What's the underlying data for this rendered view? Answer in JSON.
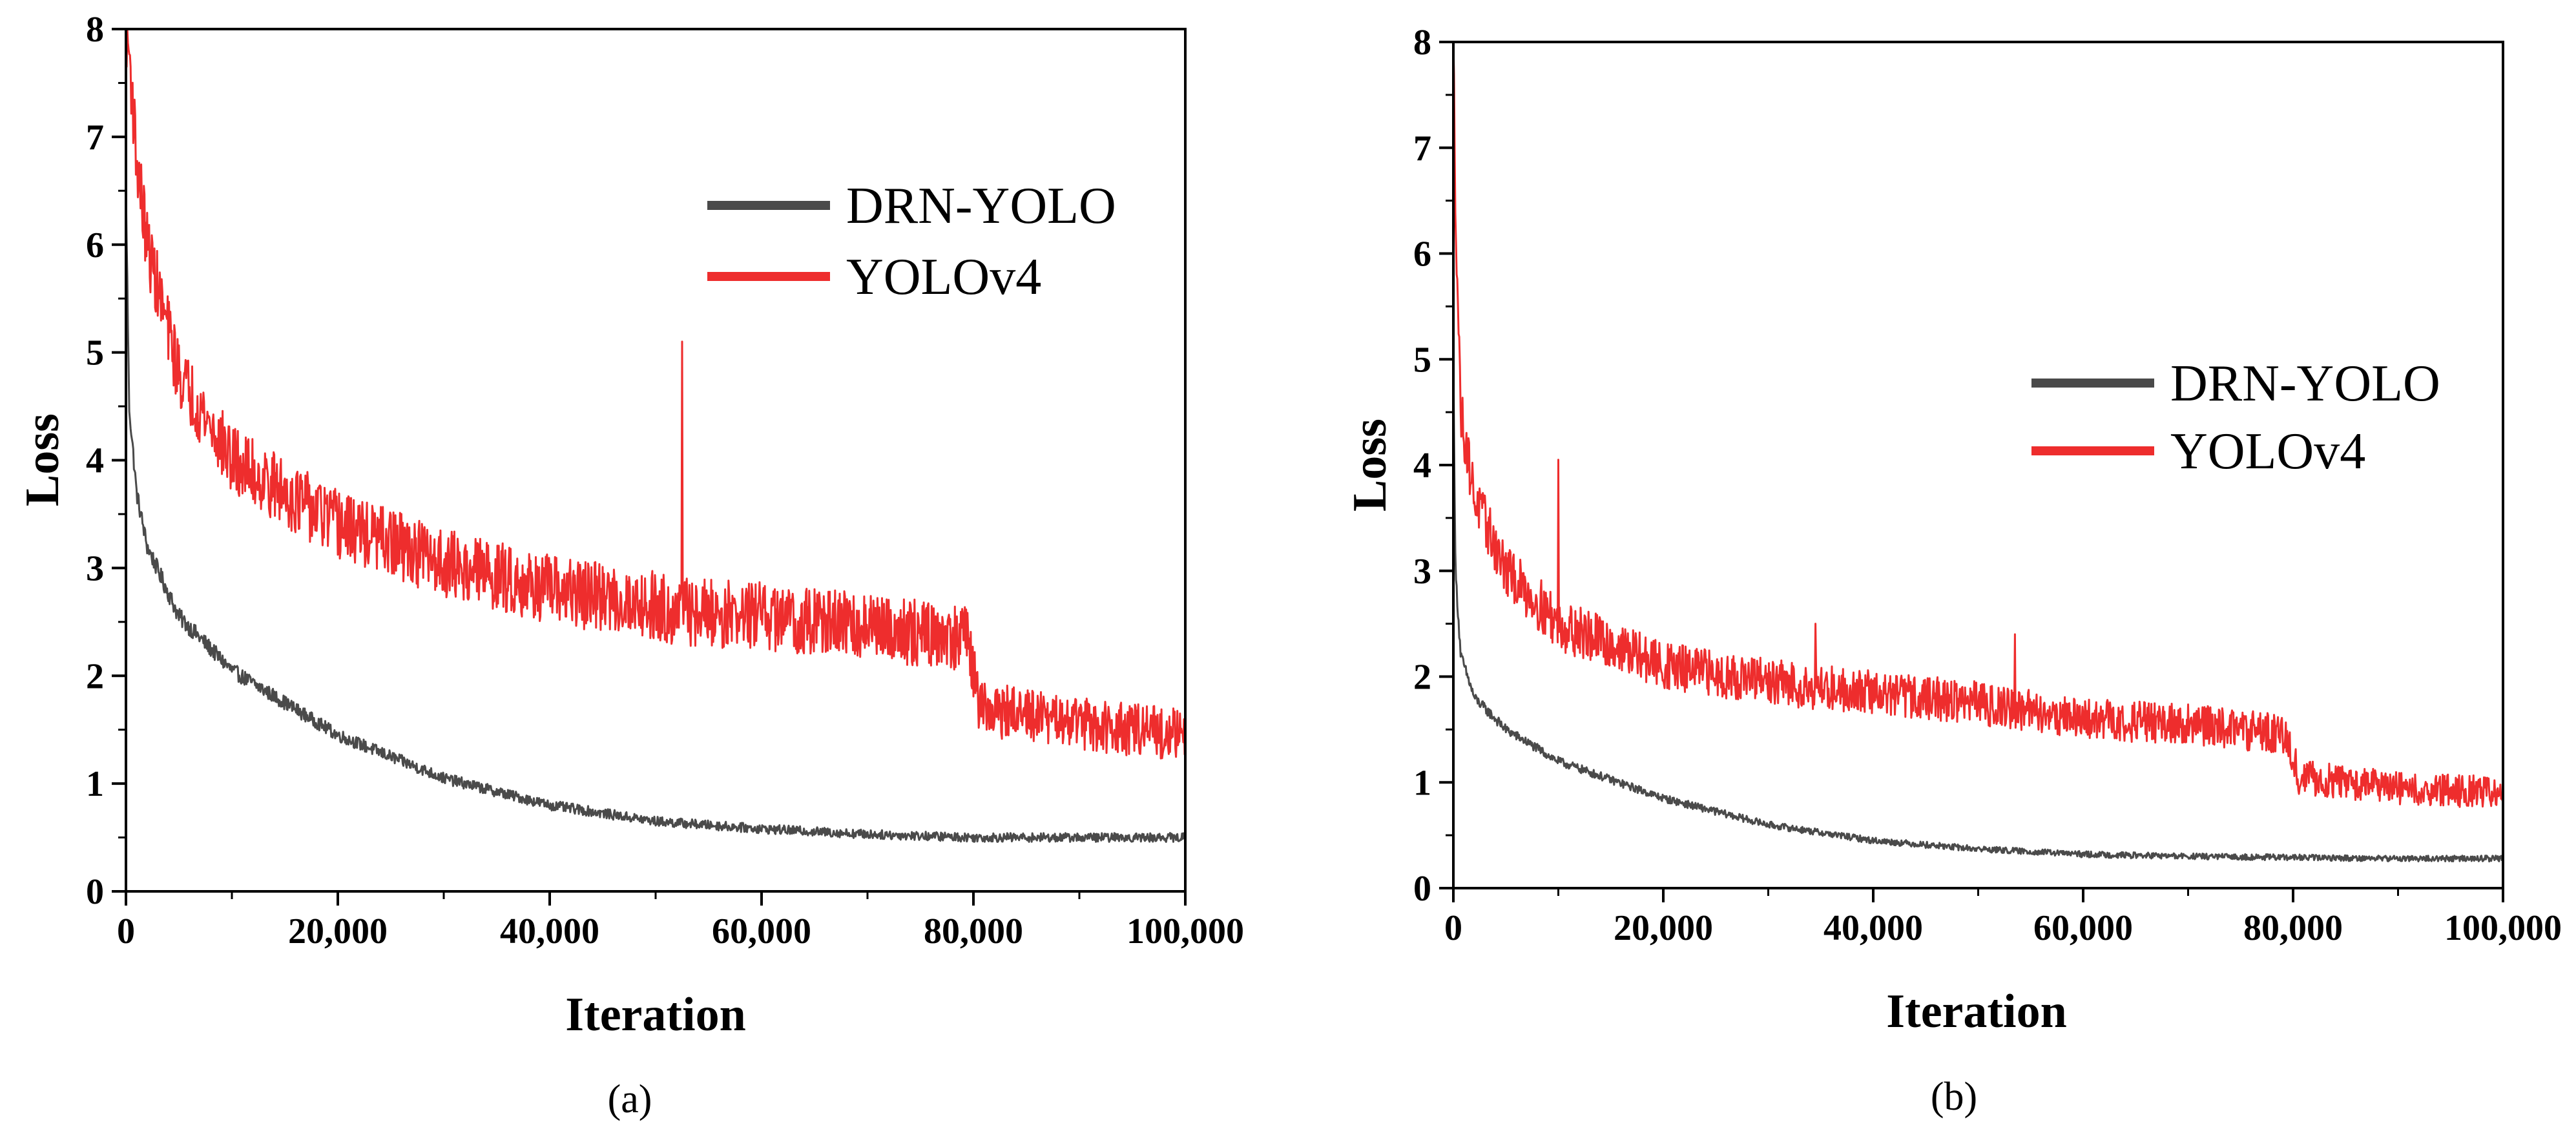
{
  "colors": {
    "drn_yolo": "#4a4a4a",
    "yolov4": "#ee2d2d",
    "axis": "#000000"
  },
  "chart_data": [
    {
      "type": "line",
      "caption": "(a)",
      "xlabel": "Iteration",
      "ylabel": "Loss",
      "xlim": [
        0,
        100000
      ],
      "ylim": [
        0,
        8
      ],
      "x_ticks": [
        0,
        20000,
        40000,
        60000,
        80000,
        100000
      ],
      "x_tick_labels": [
        "0",
        "20,000",
        "40,000",
        "60,000",
        "80,000",
        "100,000"
      ],
      "y_ticks": [
        0,
        1,
        2,
        3,
        4,
        5,
        6,
        7,
        8
      ],
      "y_tick_labels": [
        "0",
        "1",
        "2",
        "3",
        "4",
        "5",
        "6",
        "7",
        "8"
      ],
      "legend_position": "top-right",
      "series": [
        {
          "name": "DRN-YOLO",
          "color": "#4a4a4a",
          "x": [
            0,
            300,
            1000,
            2000,
            5000,
            10000,
            20000,
            30000,
            40000,
            50000,
            60000,
            70000,
            80000,
            90000,
            100000
          ],
          "values": [
            6.5,
            4.5,
            3.7,
            3.2,
            2.55,
            2.05,
            1.45,
            1.05,
            0.8,
            0.65,
            0.58,
            0.53,
            0.5,
            0.5,
            0.5
          ],
          "noise": 0.08
        },
        {
          "name": "YOLOv4",
          "color": "#ee2d2d",
          "x": [
            0,
            300,
            1000,
            2000,
            5000,
            10000,
            20000,
            30000,
            40000,
            50000,
            52000,
            60000,
            70000,
            79500,
            80500,
            90000,
            100000
          ],
          "values": [
            8.0,
            7.8,
            6.8,
            6.0,
            4.8,
            4.0,
            3.4,
            3.05,
            2.8,
            2.65,
            2.6,
            2.55,
            2.45,
            2.35,
            1.7,
            1.55,
            1.45
          ],
          "noise": 0.32,
          "spikes": [
            {
              "x": 52500,
              "value": 5.1
            }
          ]
        }
      ]
    },
    {
      "type": "line",
      "caption": "(b)",
      "xlabel": "Iteration",
      "ylabel": "Loss",
      "xlim": [
        0,
        100000
      ],
      "ylim": [
        0,
        8
      ],
      "x_ticks": [
        0,
        20000,
        40000,
        60000,
        80000,
        100000
      ],
      "x_tick_labels": [
        "0",
        "20,000",
        "40,000",
        "60,000",
        "80,000",
        "100,000"
      ],
      "y_ticks": [
        0,
        1,
        2,
        3,
        4,
        5,
        6,
        7,
        8
      ],
      "y_tick_labels": [
        "0",
        "1",
        "2",
        "3",
        "4",
        "5",
        "6",
        "7",
        "8"
      ],
      "legend_position": "center-right",
      "series": [
        {
          "name": "DRN-YOLO",
          "color": "#4a4a4a",
          "x": [
            0,
            200,
            700,
            2000,
            5000,
            10000,
            20000,
            30000,
            40000,
            50000,
            60000,
            70000,
            80000,
            90000,
            100000
          ],
          "values": [
            5.0,
            3.0,
            2.2,
            1.8,
            1.5,
            1.2,
            0.85,
            0.6,
            0.45,
            0.37,
            0.32,
            0.3,
            0.29,
            0.28,
            0.28
          ],
          "noise": 0.06
        },
        {
          "name": "YOLOv4",
          "color": "#ee2d2d",
          "x": [
            0,
            200,
            700,
            2000,
            5000,
            10000,
            20000,
            30000,
            40000,
            50000,
            60000,
            70000,
            79500,
            80500,
            90000,
            100000
          ],
          "values": [
            8.0,
            6.5,
            4.5,
            3.7,
            3.0,
            2.5,
            2.1,
            1.95,
            1.85,
            1.75,
            1.6,
            1.55,
            1.45,
            1.05,
            0.95,
            0.9
          ],
          "noise": 0.25,
          "spikes": [
            {
              "x": 10000,
              "value": 4.05
            },
            {
              "x": 34500,
              "value": 2.5
            },
            {
              "x": 53500,
              "value": 2.4
            }
          ]
        }
      ]
    }
  ]
}
